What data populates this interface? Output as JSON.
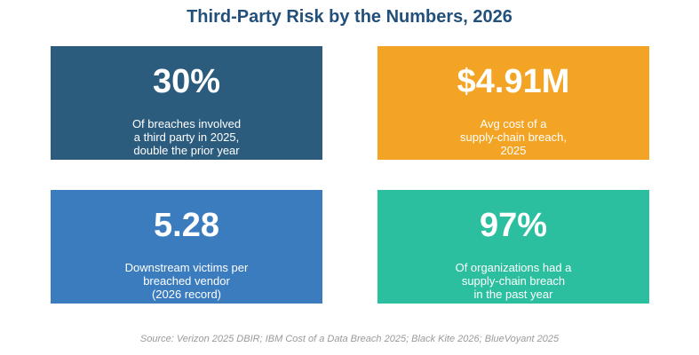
{
  "title": "Third-Party Risk by the Numbers, 2026",
  "cards": [
    {
      "value": "30%",
      "lines": [
        "Of breaches involved",
        "a third party in 2025,",
        "double the prior year"
      ]
    },
    {
      "value": "$4.91M",
      "lines": [
        "Avg cost of a",
        "supply-chain breach,",
        "2025"
      ]
    },
    {
      "value": "5.28",
      "lines": [
        "Downstream victims per",
        "breached vendor",
        "(2026 record)"
      ]
    },
    {
      "value": "97%",
      "lines": [
        "Of organizations had a",
        "supply-chain breach",
        "in the past year"
      ]
    }
  ],
  "source": "Source: Verizon 2025 DBIR; IBM Cost of a Data Breach 2025; Black Kite 2026; BlueVoyant 2025"
}
